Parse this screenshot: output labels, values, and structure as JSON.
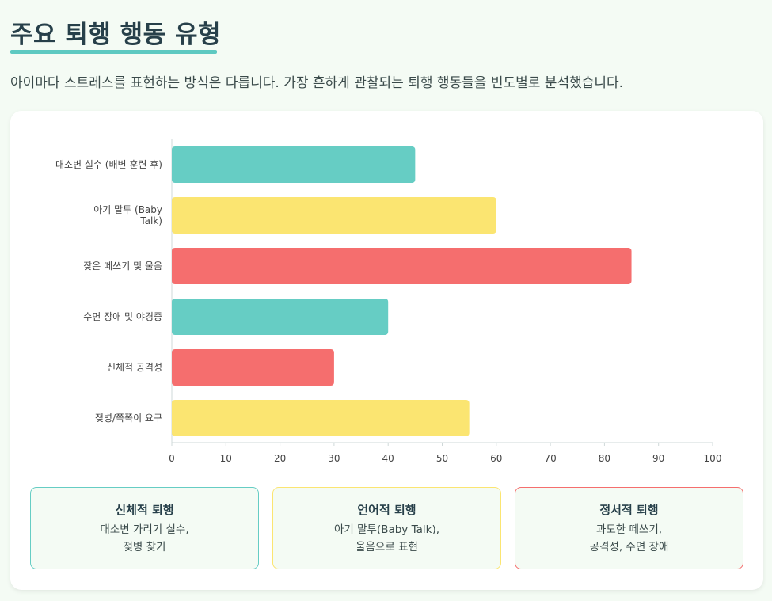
{
  "header": {
    "title": "주요 퇴행 행동 유형",
    "subtitle": "아이마다 스트레스를 표현하는 방식은 다릅니다. 가장 흔하게 관찰되는 퇴행 행동들을 빈도별로 분석했습니다."
  },
  "chart_data": {
    "type": "bar",
    "orientation": "horizontal",
    "categories": [
      [
        "대소변 실수 (배변 훈련 후)"
      ],
      [
        "아기 말투 (Baby",
        "Talk)"
      ],
      [
        "잦은 떼쓰기 및 울음"
      ],
      [
        "수면 장애 및 야경증"
      ],
      [
        "신체적 공격성"
      ],
      [
        "젖병/쪽쪽이 요구"
      ]
    ],
    "values": [
      45,
      60,
      85,
      40,
      30,
      55
    ],
    "colors": [
      "#66cdc4",
      "#fbe571",
      "#f56e6e",
      "#66cdc4",
      "#f56e6e",
      "#fbe571"
    ],
    "xlim": [
      0,
      100
    ],
    "xticks": [
      0,
      10,
      20,
      30,
      40,
      50,
      60,
      70,
      80,
      90,
      100
    ],
    "grid": false
  },
  "summary": [
    {
      "title": "신체적 퇴행",
      "line1": "대소변 가리기 실수,",
      "line2": "젖병 찾기",
      "border": "#66cdc4"
    },
    {
      "title": "언어적 퇴행",
      "line1": "아기 말투(Baby Talk),",
      "line2": "울음으로 표현",
      "border": "#fbe571"
    },
    {
      "title": "정서적 퇴행",
      "line1": "과도한 떼쓰기,",
      "line2": "공격성, 수면 장애",
      "border": "#f56e6e"
    }
  ]
}
